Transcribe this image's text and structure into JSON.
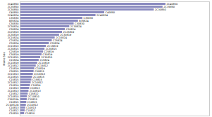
{
  "chart_data": {
    "type": "bar",
    "orientation": "horizontal",
    "ylabel": "Frame Size",
    "categories": [
      "2C40850",
      "2C35850",
      "2C30850",
      "C40850",
      "2C40824",
      "C35830",
      "B35824",
      "C30830",
      "2C30824",
      "C30824",
      "2C25819",
      "2C30819",
      "2C15824",
      "C25824",
      "C20824",
      "2C15819",
      "2C30815",
      "C25819",
      "C30819",
      "2C15815",
      "C15824",
      "2C10819",
      "2C15812",
      "C15819",
      "C30815",
      "2C15813",
      "2C10815",
      "C15815",
      "2C10812",
      "C10819",
      "C15813",
      "2C10813",
      "C15812",
      "2C10810",
      "C15815b",
      "C10815",
      "2C10812b",
      "C10813",
      "C10812",
      "C10810"
    ],
    "values": [
      100,
      98,
      92,
      58,
      52,
      43,
      40,
      37,
      34,
      31,
      29,
      27,
      24,
      22,
      20,
      18,
      17,
      16,
      15,
      14,
      13,
      12,
      11,
      10,
      9.5,
      9,
      8.5,
      8,
      7.5,
      7,
      6.5,
      6,
      5.5,
      5,
      4.8,
      4.5,
      4.2,
      3.8,
      3.4,
      3.0
    ],
    "value_labels": [
      "2C40850",
      "2C35850",
      "2C30850",
      "C40850",
      "2C40824",
      "C35830",
      "B35824",
      "C30830",
      "2C30824",
      "C30824",
      "2C25819",
      "2C30819",
      "2C15824",
      "C25824",
      "C20824",
      "2C15819",
      "2C30815",
      "C25819",
      "C30819",
      "2C15815",
      "C15824",
      "2C10819",
      "2C15812",
      "C15819",
      "C30815",
      "2C15813",
      "2C10815",
      "C15815",
      "2C10812",
      "C10819",
      "C15813",
      "2C10813",
      "C15812",
      "2C10810",
      "C15815",
      "C10815",
      "2C10812",
      "C10813",
      "C10812",
      "C10810"
    ],
    "color": "#8b8bbf",
    "xlim": [
      0,
      130
    ],
    "tick_labels": "y"
  }
}
